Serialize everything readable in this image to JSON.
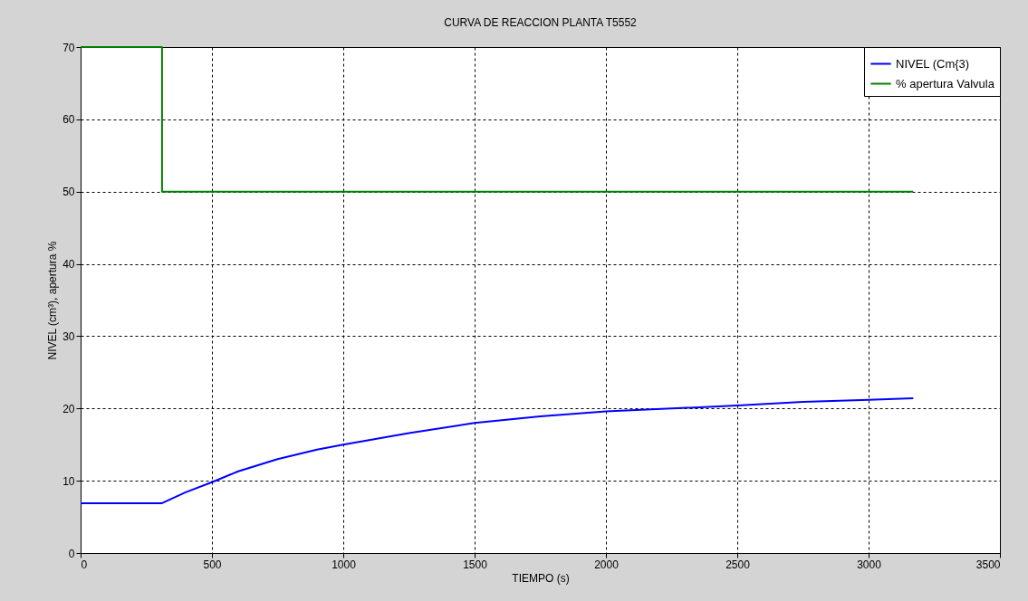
{
  "chart_data": {
    "type": "line",
    "title": "CURVA DE REACCION PLANTA T5552",
    "xlabel": "TIEMPO (s)",
    "ylabel": "NIVEL (cm³), apertura %",
    "xlim": [
      0,
      3500
    ],
    "xticks": [
      0,
      500,
      1000,
      1500,
      2000,
      2500,
      3000,
      3500
    ],
    "ylim": [
      0,
      70
    ],
    "yticks": [
      0,
      10,
      20,
      30,
      40,
      50,
      60,
      70
    ],
    "grid": true,
    "legend": "top right",
    "series": [
      {
        "name": "NIVEL (Cm{3)",
        "color": "#0000ff",
        "x": [
          0,
          100,
          200,
          310,
          400,
          500,
          600,
          750,
          900,
          1000,
          1250,
          1500,
          1750,
          2000,
          2250,
          2500,
          2750,
          3000,
          3170
        ],
        "values": [
          6.9,
          6.9,
          6.9,
          6.9,
          8.4,
          9.8,
          11.3,
          13.0,
          14.3,
          15.0,
          16.6,
          18.0,
          18.9,
          19.6,
          20.0,
          20.4,
          20.9,
          21.2,
          21.4
        ]
      },
      {
        "name": "% apertura Valvula",
        "color": "#008000",
        "x": [
          0,
          310,
          310,
          3170
        ],
        "values": [
          70,
          70,
          50,
          50
        ]
      }
    ]
  }
}
